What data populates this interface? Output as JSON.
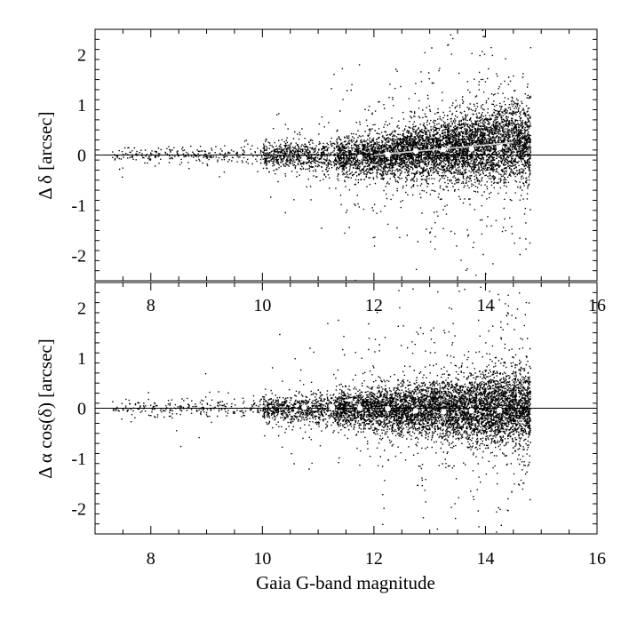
{
  "chart_data": [
    {
      "panel": "top",
      "type": "scatter",
      "xlabel": "",
      "ylabel": "Δ δ [arcsec]",
      "xlim": [
        7,
        16
      ],
      "ylim": [
        -2.5,
        2.5
      ],
      "x_ticks": [
        "8",
        "10",
        "12",
        "14",
        "16"
      ],
      "x_tick_values": [
        8,
        10,
        12,
        14,
        16
      ],
      "y_ticks": [
        "2",
        "1",
        "0",
        "-1",
        "-2"
      ],
      "y_tick_values": [
        2,
        1,
        0,
        -1,
        -2
      ],
      "reference_line_y": 0,
      "binned_means": {
        "x": [
          10.75,
          11.25,
          11.75,
          12.25,
          12.75,
          13.25,
          13.75,
          14.25
        ],
        "y": [
          -0.07,
          -0.06,
          -0.04,
          0.01,
          0.08,
          0.11,
          0.12,
          0.15
        ]
      },
      "fit_line": {
        "x": [
          12.0,
          14.5
        ],
        "y": [
          0.0,
          0.25
        ]
      },
      "scatter_density": {
        "x_range": [
          7.3,
          14.9
        ],
        "peak_x": 13.4,
        "note_levels": "dense cloud of individual star offsets, spread increasing toward fainter magnitudes"
      }
    },
    {
      "panel": "bottom",
      "type": "scatter",
      "xlabel": "Gaia G-band magnitude",
      "ylabel": "Δ α cos(δ) [arcsec]",
      "xlim": [
        7,
        16
      ],
      "ylim": [
        -2.5,
        2.5
      ],
      "x_ticks": [
        "8",
        "10",
        "12",
        "14",
        "16"
      ],
      "x_tick_values": [
        8,
        10,
        12,
        14,
        16
      ],
      "y_ticks": [
        "2",
        "1",
        "0",
        "-1",
        "-2"
      ],
      "y_tick_values": [
        2,
        1,
        0,
        -1,
        -2
      ],
      "reference_line_y": 0,
      "binned_means": {
        "x": [
          10.75,
          11.25,
          11.75,
          12.25,
          12.75,
          13.25,
          13.75,
          14.25
        ],
        "y": [
          0.02,
          0.01,
          0.0,
          -0.01,
          -0.05,
          -0.07,
          -0.05,
          -0.04
        ]
      },
      "scatter_density": {
        "x_range": [
          7.3,
          14.9
        ],
        "peak_x": 13.4
      }
    }
  ],
  "colors": {
    "points": "#000000",
    "markers": "#ffffff",
    "fit_line": "#d0d0d0",
    "frame": "#000000"
  }
}
